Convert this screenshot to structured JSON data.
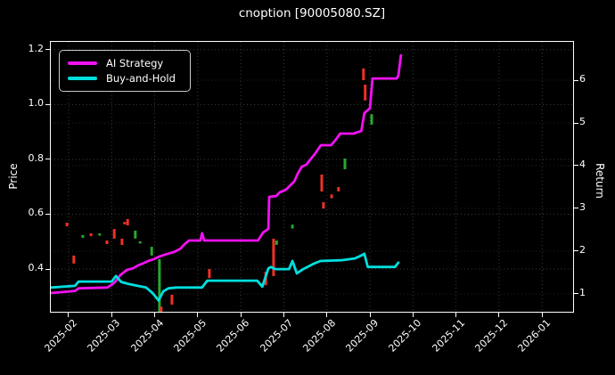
{
  "title": "cnoption [90005080.SZ]",
  "legend": {
    "items": [
      {
        "label": "AI Strategy",
        "color": "#f211f2"
      },
      {
        "label": "Buy-and-Hold",
        "color": "#00dfdf"
      }
    ]
  },
  "axes": {
    "x": {
      "tick_labels": [
        "2025-02",
        "2025-03",
        "2025-04",
        "2025-05",
        "2025-06",
        "2025-07",
        "2025-08",
        "2025-09",
        "2025-10",
        "2025-11",
        "2025-12",
        "2026-01"
      ],
      "tick_values": [
        0,
        1,
        2,
        3,
        4,
        5,
        6,
        7,
        8,
        9,
        10,
        11
      ],
      "range": [
        -0.414,
        11.72
      ]
    },
    "y_left": {
      "label": "Price",
      "tick_labels": [
        "0.4",
        "0.6",
        "0.8",
        "1.0",
        "1.2"
      ],
      "tick_values": [
        0.4,
        0.6,
        0.8,
        1.0,
        1.2
      ],
      "range": [
        0.244,
        1.229
      ]
    },
    "y_right": {
      "label": "Return",
      "tick_labels": [
        "1",
        "2",
        "3",
        "4",
        "5",
        "6"
      ],
      "tick_values": [
        1,
        2,
        3,
        4,
        5,
        6
      ],
      "range": [
        0.583,
        6.896
      ]
    }
  },
  "colors": {
    "background": "#000000",
    "text": "#ffffff",
    "frame": "#ffffff",
    "grid_major": "#3d3d3d",
    "grid_minor": "#242424",
    "up_candle": "#27a82e",
    "down_candle": "#ef3025"
  },
  "chart_data": {
    "type": "line",
    "title": "cnoption [90005080.SZ]",
    "xlabel": "",
    "x_unit": "months since 2025-02 (ticks 2025-02 through 2026-01)",
    "ylabel_left": "Price",
    "ylabel_right": "Return",
    "grid": true,
    "legend_position": "upper-left",
    "series": [
      {
        "name": "AI Strategy",
        "axis": "return",
        "color": "#f211f2",
        "points": [
          [
            -0.41,
            1.02
          ],
          [
            0.15,
            1.07
          ],
          [
            0.23,
            1.13
          ],
          [
            0.9,
            1.15
          ],
          [
            1.05,
            1.25
          ],
          [
            1.12,
            1.33
          ],
          [
            1.2,
            1.44
          ],
          [
            1.35,
            1.56
          ],
          [
            1.5,
            1.6
          ],
          [
            1.62,
            1.67
          ],
          [
            1.72,
            1.71
          ],
          [
            1.85,
            1.77
          ],
          [
            1.97,
            1.81
          ],
          [
            2.1,
            1.87
          ],
          [
            2.24,
            1.92
          ],
          [
            2.45,
            1.98
          ],
          [
            2.6,
            2.06
          ],
          [
            2.7,
            2.17
          ],
          [
            2.8,
            2.25
          ],
          [
            3.06,
            2.25
          ],
          [
            3.1,
            2.42
          ],
          [
            3.15,
            2.25
          ],
          [
            4.4,
            2.25
          ],
          [
            4.52,
            2.44
          ],
          [
            4.58,
            2.48
          ],
          [
            4.64,
            2.52
          ],
          [
            4.66,
            3.27
          ],
          [
            4.82,
            3.29
          ],
          [
            4.91,
            3.38
          ],
          [
            5.05,
            3.44
          ],
          [
            5.11,
            3.5
          ],
          [
            5.24,
            3.63
          ],
          [
            5.33,
            3.83
          ],
          [
            5.42,
            3.98
          ],
          [
            5.52,
            4.02
          ],
          [
            5.62,
            4.15
          ],
          [
            5.72,
            4.27
          ],
          [
            5.86,
            4.48
          ],
          [
            6.1,
            4.48
          ],
          [
            6.2,
            4.6
          ],
          [
            6.31,
            4.75
          ],
          [
            6.62,
            4.75
          ],
          [
            6.8,
            4.81
          ],
          [
            6.87,
            5.23
          ],
          [
            6.94,
            5.29
          ],
          [
            7.0,
            5.35
          ],
          [
            7.06,
            6.04
          ],
          [
            7.62,
            6.04
          ],
          [
            7.66,
            6.1
          ],
          [
            7.72,
            6.58
          ]
        ]
      },
      {
        "name": "Buy-and-Hold",
        "axis": "return",
        "color": "#00dfdf",
        "points": [
          [
            -0.41,
            1.15
          ],
          [
            0.15,
            1.19
          ],
          [
            0.23,
            1.29
          ],
          [
            1.0,
            1.29
          ],
          [
            1.1,
            1.42
          ],
          [
            1.22,
            1.28
          ],
          [
            1.4,
            1.23
          ],
          [
            1.6,
            1.19
          ],
          [
            1.8,
            1.15
          ],
          [
            1.95,
            1.02
          ],
          [
            2.09,
            0.85
          ],
          [
            2.2,
            1.06
          ],
          [
            2.32,
            1.13
          ],
          [
            2.5,
            1.15
          ],
          [
            3.1,
            1.15
          ],
          [
            3.22,
            1.31
          ],
          [
            4.38,
            1.31
          ],
          [
            4.5,
            1.17
          ],
          [
            4.64,
            1.6
          ],
          [
            4.7,
            1.63
          ],
          [
            4.8,
            1.58
          ],
          [
            5.12,
            1.58
          ],
          [
            5.2,
            1.77
          ],
          [
            5.3,
            1.48
          ],
          [
            5.45,
            1.58
          ],
          [
            5.7,
            1.71
          ],
          [
            5.85,
            1.77
          ],
          [
            6.35,
            1.79
          ],
          [
            6.65,
            1.83
          ],
          [
            6.8,
            1.9
          ],
          [
            6.87,
            1.94
          ],
          [
            6.95,
            1.63
          ],
          [
            7.58,
            1.63
          ],
          [
            7.66,
            1.73
          ]
        ]
      }
    ],
    "candles": [
      {
        "x": -0.04,
        "low": 0.556,
        "high": 0.569,
        "color": "red"
      },
      {
        "x": 0.12,
        "low": 0.42,
        "high": 0.449,
        "color": "red"
      },
      {
        "x": 0.33,
        "low": 0.514,
        "high": 0.524,
        "color": "green"
      },
      {
        "x": 0.52,
        "low": 0.52,
        "high": 0.53,
        "color": "red"
      },
      {
        "x": 0.72,
        "low": 0.524,
        "high": 0.53,
        "color": "green"
      },
      {
        "x": 0.89,
        "low": 0.491,
        "high": 0.504,
        "color": "red"
      },
      {
        "x": 1.06,
        "low": 0.511,
        "high": 0.546,
        "color": "red"
      },
      {
        "x": 1.24,
        "low": 0.488,
        "high": 0.511,
        "color": "red"
      },
      {
        "x": 1.3,
        "low": 0.563,
        "high": 0.572,
        "color": "red"
      },
      {
        "x": 1.37,
        "low": 0.559,
        "high": 0.582,
        "color": "red"
      },
      {
        "x": 1.55,
        "low": 0.511,
        "high": 0.54,
        "color": "green"
      },
      {
        "x": 1.66,
        "low": 0.494,
        "high": 0.501,
        "color": "green"
      },
      {
        "x": 1.93,
        "low": 0.449,
        "high": 0.481,
        "color": "green"
      },
      {
        "x": 2.11,
        "low": 0.241,
        "high": 0.436,
        "color": "green"
      },
      {
        "x": 2.15,
        "low": 0.244,
        "high": 0.263,
        "color": "red"
      },
      {
        "x": 2.4,
        "low": 0.27,
        "high": 0.306,
        "color": "red"
      },
      {
        "x": 3.27,
        "low": 0.367,
        "high": 0.4,
        "color": "red"
      },
      {
        "x": 4.58,
        "low": 0.341,
        "high": 0.39,
        "color": "red"
      },
      {
        "x": 4.76,
        "low": 0.374,
        "high": 0.511,
        "color": "red"
      },
      {
        "x": 4.83,
        "low": 0.488,
        "high": 0.504,
        "color": "green"
      },
      {
        "x": 5.2,
        "low": 0.548,
        "high": 0.562,
        "color": "green"
      },
      {
        "x": 5.88,
        "low": 0.683,
        "high": 0.745,
        "color": "red"
      },
      {
        "x": 5.92,
        "low": 0.621,
        "high": 0.644,
        "color": "red"
      },
      {
        "x": 6.11,
        "low": 0.658,
        "high": 0.672,
        "color": "red"
      },
      {
        "x": 6.27,
        "low": 0.683,
        "high": 0.699,
        "color": "red"
      },
      {
        "x": 6.42,
        "low": 0.764,
        "high": 0.803,
        "color": "green"
      },
      {
        "x": 6.85,
        "low": 1.089,
        "high": 1.132,
        "color": "red"
      },
      {
        "x": 6.89,
        "low": 1.015,
        "high": 1.073,
        "color": "red"
      },
      {
        "x": 7.04,
        "low": 0.927,
        "high": 0.965,
        "color": "green"
      }
    ]
  }
}
